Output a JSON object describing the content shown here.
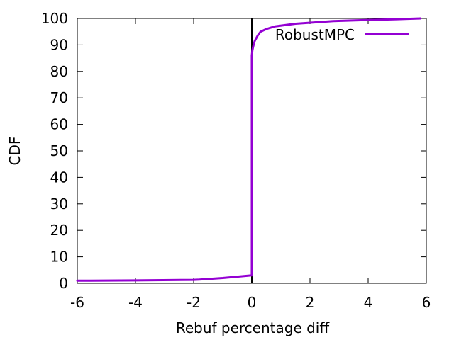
{
  "chart_data": {
    "type": "line",
    "title": "",
    "xlabel": "Rebuf percentage diff",
    "ylabel": "CDF",
    "xlim": [
      -6,
      6
    ],
    "ylim": [
      0,
      100
    ],
    "x_ticks": [
      -6,
      -4,
      -2,
      0,
      2,
      4,
      6
    ],
    "y_ticks": [
      0,
      10,
      20,
      30,
      40,
      50,
      60,
      70,
      80,
      90,
      100
    ],
    "x_tick_labels": [
      "-6",
      "-4",
      "-2",
      "0",
      "2",
      "4",
      "6"
    ],
    "y_tick_labels": [
      "0",
      "10",
      "20",
      "30",
      "40",
      "50",
      "60",
      "70",
      "80",
      "90",
      "100"
    ],
    "grid": false,
    "legend_position": "top-right",
    "reference_line_x": 0,
    "series": [
      {
        "name": "RobustMPC",
        "color": "#9400d3",
        "x": [
          -6.0,
          -4.0,
          -2.0,
          -1.8,
          -1.0,
          -0.5,
          0.0,
          0.0,
          0.02,
          0.05,
          0.1,
          0.2,
          0.3,
          0.5,
          0.8,
          1.5,
          2.8,
          4.0,
          5.0,
          5.8
        ],
        "y": [
          1.0,
          1.1,
          1.3,
          1.4,
          2.0,
          2.5,
          3.0,
          86.0,
          88.0,
          89.5,
          91.5,
          93.5,
          95.0,
          96.0,
          97.0,
          98.0,
          99.0,
          99.4,
          99.7,
          100.0
        ]
      }
    ]
  }
}
